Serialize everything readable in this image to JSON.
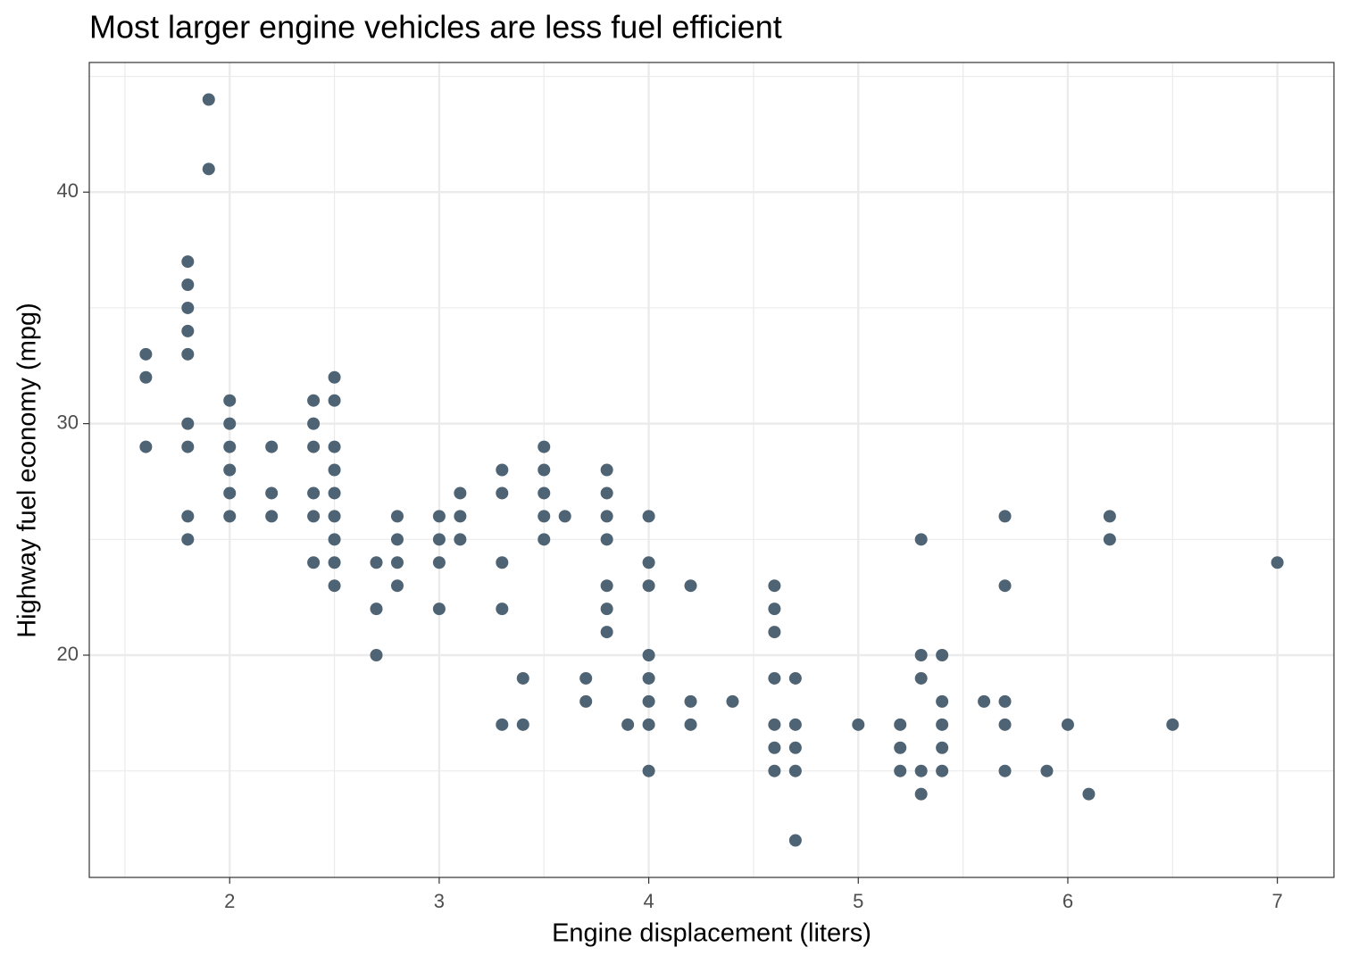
{
  "chart_data": {
    "type": "scatter",
    "title": "Most larger engine vehicles are less fuel efficient",
    "x_label": "Engine displacement (liters)",
    "y_label": "Highway fuel economy (mpg)",
    "color": "#4e6374",
    "grid": true,
    "xlim": [
      1.33,
      7.27
    ],
    "ylim": [
      10.4,
      45.6
    ],
    "xticks": [
      2,
      3,
      4,
      5,
      6,
      7
    ],
    "yticks": [
      20,
      30,
      40
    ],
    "x": [
      1.6,
      1.6,
      1.6,
      1.8,
      1.8,
      1.8,
      1.8,
      1.8,
      1.8,
      1.8,
      1.8,
      1.8,
      1.9,
      1.9,
      2.0,
      2.0,
      2.0,
      2.0,
      2.0,
      2.0,
      2.2,
      2.2,
      2.2,
      2.4,
      2.4,
      2.4,
      2.4,
      2.4,
      2.4,
      2.5,
      2.5,
      2.5,
      2.5,
      2.5,
      2.5,
      2.5,
      2.5,
      2.5,
      2.7,
      2.7,
      2.7,
      2.8,
      2.8,
      2.8,
      2.8,
      3.0,
      3.0,
      3.0,
      3.0,
      3.1,
      3.1,
      3.1,
      3.3,
      3.3,
      3.3,
      3.3,
      3.3,
      3.4,
      3.4,
      3.5,
      3.5,
      3.5,
      3.5,
      3.5,
      3.6,
      3.7,
      3.7,
      3.8,
      3.8,
      3.8,
      3.8,
      3.8,
      3.8,
      3.8,
      3.9,
      4.0,
      4.0,
      4.0,
      4.0,
      4.0,
      4.0,
      4.0,
      4.0,
      4.2,
      4.2,
      4.2,
      4.4,
      4.6,
      4.6,
      4.6,
      4.6,
      4.6,
      4.6,
      4.6,
      4.7,
      4.7,
      4.7,
      4.7,
      4.7,
      5.0,
      5.2,
      5.2,
      5.2,
      5.3,
      5.3,
      5.3,
      5.3,
      5.3,
      5.4,
      5.4,
      5.4,
      5.4,
      5.4,
      5.6,
      5.7,
      5.7,
      5.7,
      5.7,
      5.7,
      5.9,
      6.0,
      6.1,
      6.2,
      6.2,
      6.5,
      7.0
    ],
    "values": [
      33,
      32,
      29,
      37,
      36,
      35,
      34,
      33,
      30,
      29,
      26,
      25,
      44,
      41,
      31,
      30,
      29,
      28,
      27,
      26,
      29,
      27,
      26,
      31,
      30,
      29,
      27,
      26,
      24,
      32,
      31,
      29,
      28,
      27,
      26,
      25,
      24,
      23,
      24,
      22,
      20,
      26,
      25,
      24,
      23,
      26,
      25,
      24,
      22,
      27,
      26,
      25,
      28,
      27,
      24,
      22,
      17,
      19,
      17,
      29,
      28,
      27,
      26,
      25,
      26,
      19,
      18,
      28,
      27,
      26,
      25,
      23,
      22,
      21,
      17,
      26,
      24,
      23,
      20,
      19,
      18,
      17,
      15,
      23,
      18,
      17,
      18,
      23,
      22,
      21,
      19,
      17,
      16,
      15,
      19,
      17,
      16,
      15,
      12,
      17,
      17,
      16,
      15,
      25,
      20,
      19,
      15,
      14,
      20,
      18,
      17,
      16,
      15,
      18,
      26,
      23,
      18,
      17,
      15,
      15,
      17,
      14,
      26,
      25,
      17,
      24
    ]
  }
}
